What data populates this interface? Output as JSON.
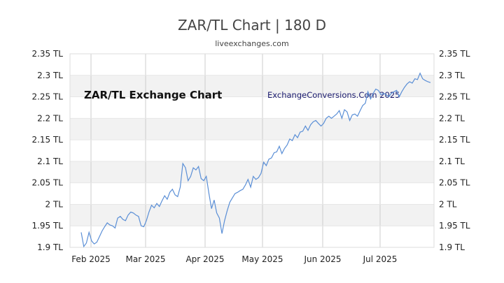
{
  "chart_data": {
    "type": "line",
    "title": "ZAR/TL Chart | 180 D",
    "subtitle": "liveexchanges.com",
    "annotations": {
      "left": "ZAR/TL Exchange Chart",
      "right": "ExchangeConversions.Com 2025"
    },
    "x_tick_labels": [
      "Feb 2025",
      "Mar 2025",
      "Apr 2025",
      "May 2025",
      "Jun 2025",
      "Jul 2025"
    ],
    "y_tick_labels": [
      "2.35 TL",
      "2.3 TL",
      "2.25 TL",
      "2.2 TL",
      "2.15 TL",
      "2.1 TL",
      "2.05 TL",
      "2 TL",
      "1.95 TL",
      "1.9 TL"
    ],
    "y_ticks": [
      2.35,
      2.3,
      2.25,
      2.2,
      2.15,
      2.1,
      2.05,
      2.0,
      1.95,
      1.9
    ],
    "ylim": [
      1.9,
      2.35
    ],
    "grid": true,
    "line_color": "#5b8fd6",
    "band_color": "#f2f2f2",
    "series": [
      {
        "values": [
          1.935,
          1.902,
          1.91,
          1.935,
          1.915,
          1.908,
          1.912,
          1.925,
          1.938,
          1.948,
          1.957,
          1.952,
          1.95,
          1.945,
          1.968,
          1.972,
          1.965,
          1.962,
          1.975,
          1.982,
          1.98,
          1.975,
          1.972,
          1.95,
          1.948,
          1.962,
          1.982,
          1.998,
          1.992,
          2.002,
          1.995,
          2.008,
          2.02,
          2.012,
          2.028,
          2.035,
          2.022,
          2.018,
          2.04,
          2.095,
          2.085,
          2.055,
          2.065,
          2.085,
          2.08,
          2.088,
          2.06,
          2.055,
          2.065,
          2.025,
          1.99,
          2.01,
          1.98,
          1.968,
          1.932,
          1.962,
          1.985,
          2.005,
          2.015,
          2.025,
          2.028,
          2.032,
          2.035,
          2.045,
          2.058,
          2.04,
          2.065,
          2.058,
          2.062,
          2.072,
          2.098,
          2.09,
          2.105,
          2.108,
          2.12,
          2.122,
          2.135,
          2.118,
          2.13,
          2.138,
          2.152,
          2.148,
          2.162,
          2.155,
          2.168,
          2.17,
          2.182,
          2.172,
          2.185,
          2.192,
          2.195,
          2.188,
          2.182,
          2.188,
          2.2,
          2.205,
          2.2,
          2.205,
          2.21,
          2.218,
          2.2,
          2.22,
          2.215,
          2.195,
          2.208,
          2.21,
          2.205,
          2.218,
          2.23,
          2.235,
          2.262,
          2.245,
          2.258,
          2.268,
          2.265,
          2.255,
          2.258,
          2.255,
          2.25,
          2.258,
          2.262,
          2.265,
          2.25,
          2.262,
          2.272,
          2.28,
          2.285,
          2.282,
          2.292,
          2.29,
          2.305,
          2.292,
          2.288,
          2.285,
          2.283
        ]
      }
    ]
  }
}
